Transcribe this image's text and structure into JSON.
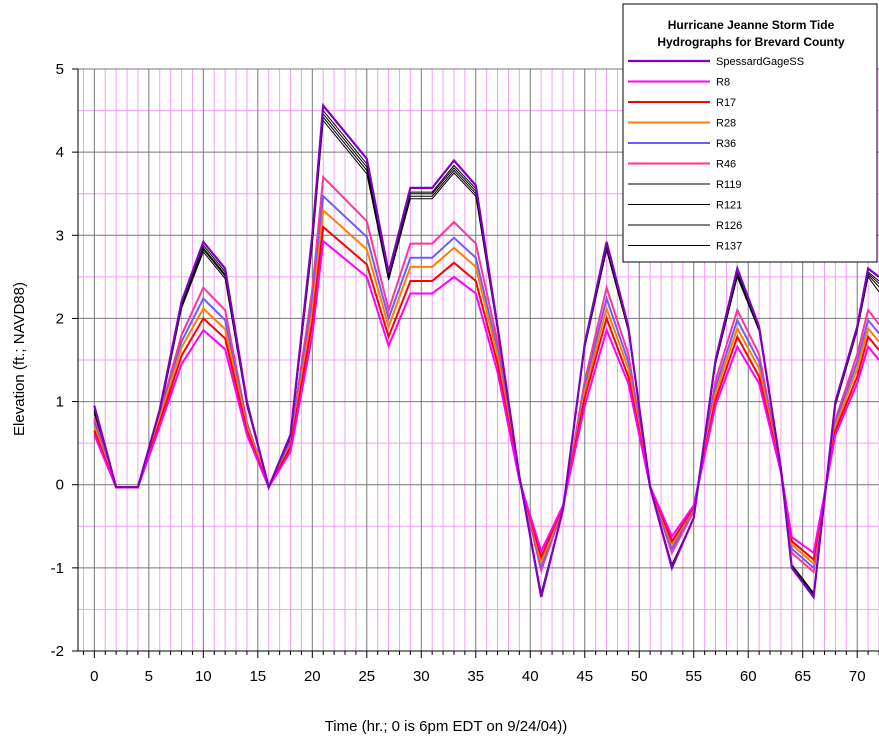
{
  "chart_data": {
    "type": "line",
    "title": "Hurricane Jeanne Storm Tide Hydrographs for Brevard County",
    "title_lines": [
      "Hurricane Jeanne Storm Tide",
      "Hydrographs for Brevard County"
    ],
    "xlabel": "Time (hr.; 0 is 6pm EDT on 9/24/04))",
    "ylabel": "Elevation (ft.; NAVD88)",
    "xlim": [
      -1.5,
      72
    ],
    "ylim": [
      -2,
      5
    ],
    "x_ticks": [
      0,
      5,
      10,
      15,
      20,
      25,
      30,
      35,
      40,
      45,
      50,
      55,
      60,
      65,
      70
    ],
    "y_ticks": [
      -2,
      -1,
      0,
      1,
      2,
      3,
      4,
      5
    ],
    "grid": true,
    "legend_position": "top-right",
    "x": [
      0,
      2,
      4,
      6,
      8,
      10,
      12,
      14,
      16,
      18,
      20,
      21,
      25,
      27,
      29,
      31,
      33,
      35,
      37,
      39,
      41,
      43,
      45,
      47,
      49,
      51,
      53,
      55,
      57,
      59,
      61,
      63,
      64,
      66,
      68,
      70,
      71,
      72
    ],
    "series": [
      {
        "name": "SpessardGageSS",
        "color": "#8000c0",
        "width": 2.2,
        "values": [
          0.95,
          -0.03,
          -0.03,
          0.9,
          2.2,
          2.92,
          2.6,
          1.0,
          -0.03,
          0.6,
          3.0,
          4.56,
          3.92,
          2.55,
          3.57,
          3.57,
          3.9,
          3.6,
          1.9,
          0.1,
          -1.35,
          -0.3,
          1.7,
          2.92,
          1.9,
          -0.03,
          -1.0,
          -0.4,
          1.5,
          2.6,
          1.9,
          0.2,
          -1.0,
          -1.35,
          1.0,
          1.9,
          2.6,
          2.5
        ]
      },
      {
        "name": "R8",
        "color": "#ff00ff",
        "width": 2,
        "values": [
          0.6,
          -0.03,
          -0.03,
          0.7,
          1.45,
          1.86,
          1.63,
          0.6,
          -0.03,
          0.4,
          1.8,
          2.93,
          2.5,
          1.67,
          2.3,
          2.3,
          2.5,
          2.3,
          1.35,
          0.05,
          -0.8,
          -0.25,
          0.95,
          1.86,
          1.22,
          -0.02,
          -0.62,
          -0.25,
          0.95,
          1.66,
          1.22,
          0.15,
          -0.63,
          -0.82,
          0.6,
          1.22,
          1.66,
          1.5
        ]
      },
      {
        "name": "R17",
        "color": "#ff0000",
        "width": 2,
        "values": [
          0.65,
          -0.03,
          -0.03,
          0.75,
          1.55,
          2.0,
          1.76,
          0.65,
          -0.03,
          0.45,
          1.95,
          3.1,
          2.65,
          1.78,
          2.45,
          2.45,
          2.67,
          2.45,
          1.45,
          0.06,
          -0.87,
          -0.26,
          1.05,
          2.0,
          1.3,
          -0.02,
          -0.68,
          -0.27,
          1.02,
          1.78,
          1.3,
          0.16,
          -0.68,
          -0.9,
          0.65,
          1.3,
          1.78,
          1.62
        ]
      },
      {
        "name": "R28",
        "color": "#ff7f00",
        "width": 2,
        "values": [
          0.7,
          -0.03,
          -0.03,
          0.8,
          1.65,
          2.12,
          1.87,
          0.7,
          -0.03,
          0.47,
          2.08,
          3.3,
          2.83,
          1.9,
          2.62,
          2.62,
          2.85,
          2.62,
          1.55,
          0.07,
          -0.93,
          -0.27,
          1.12,
          2.12,
          1.4,
          -0.02,
          -0.72,
          -0.28,
          1.1,
          1.88,
          1.4,
          0.17,
          -0.72,
          -0.95,
          0.7,
          1.4,
          1.88,
          1.72
        ]
      },
      {
        "name": "R36",
        "color": "#6a5cff",
        "width": 2,
        "values": [
          0.75,
          -0.03,
          -0.03,
          0.82,
          1.72,
          2.24,
          1.98,
          0.72,
          -0.03,
          0.5,
          2.2,
          3.47,
          2.98,
          2.0,
          2.73,
          2.73,
          2.97,
          2.73,
          1.62,
          0.08,
          -0.98,
          -0.28,
          1.18,
          2.24,
          1.48,
          -0.02,
          -0.77,
          -0.3,
          1.17,
          1.98,
          1.48,
          0.18,
          -0.77,
          -1.0,
          0.74,
          1.48,
          1.98,
          1.82
        ]
      },
      {
        "name": "R46",
        "color": "#ff3399",
        "width": 2,
        "values": [
          0.8,
          -0.03,
          -0.03,
          0.85,
          1.8,
          2.37,
          2.1,
          0.75,
          -0.03,
          0.52,
          2.35,
          3.7,
          3.17,
          2.1,
          2.9,
          2.9,
          3.16,
          2.9,
          1.72,
          0.08,
          -1.03,
          -0.29,
          1.25,
          2.37,
          1.57,
          -0.02,
          -0.82,
          -0.32,
          1.25,
          2.1,
          1.57,
          0.19,
          -0.82,
          -1.05,
          0.78,
          1.57,
          2.1,
          1.93
        ]
      },
      {
        "name": "R119",
        "color": "#000000",
        "width": 1,
        "values": [
          0.92,
          -0.03,
          -0.03,
          0.88,
          2.18,
          2.88,
          2.56,
          0.98,
          -0.03,
          0.58,
          2.95,
          4.5,
          3.86,
          2.52,
          3.52,
          3.52,
          3.84,
          3.56,
          1.88,
          0.1,
          -1.33,
          -0.3,
          1.68,
          2.88,
          1.88,
          -0.03,
          -0.99,
          -0.4,
          1.48,
          2.56,
          1.88,
          0.2,
          -0.99,
          -1.33,
          0.98,
          1.88,
          2.56,
          2.45
        ]
      },
      {
        "name": "R121",
        "color": "#000000",
        "width": 1,
        "values": [
          0.9,
          -0.03,
          -0.03,
          0.87,
          2.16,
          2.85,
          2.53,
          0.97,
          -0.03,
          0.57,
          2.92,
          4.46,
          3.82,
          2.5,
          3.5,
          3.5,
          3.81,
          3.53,
          1.87,
          0.1,
          -1.32,
          -0.3,
          1.67,
          2.86,
          1.87,
          -0.03,
          -0.98,
          -0.4,
          1.47,
          2.54,
          1.87,
          0.2,
          -0.98,
          -1.32,
          0.97,
          1.87,
          2.54,
          2.42
        ]
      },
      {
        "name": "R126",
        "color": "#000000",
        "width": 1,
        "values": [
          0.88,
          -0.03,
          -0.03,
          0.86,
          2.14,
          2.83,
          2.51,
          0.96,
          -0.03,
          0.56,
          2.9,
          4.42,
          3.78,
          2.48,
          3.47,
          3.47,
          3.78,
          3.5,
          1.86,
          0.1,
          -1.31,
          -0.3,
          1.66,
          2.84,
          1.86,
          -0.03,
          -0.97,
          -0.4,
          1.46,
          2.52,
          1.86,
          0.2,
          -0.97,
          -1.31,
          0.96,
          1.86,
          2.52,
          2.38
        ]
      },
      {
        "name": "R137",
        "color": "#000000",
        "width": 1,
        "values": [
          0.86,
          -0.03,
          -0.03,
          0.85,
          2.12,
          2.8,
          2.48,
          0.95,
          -0.03,
          0.55,
          2.88,
          4.38,
          3.74,
          2.46,
          3.44,
          3.44,
          3.75,
          3.47,
          1.85,
          0.1,
          -1.3,
          -0.3,
          1.65,
          2.82,
          1.85,
          -0.03,
          -0.96,
          -0.4,
          1.45,
          2.5,
          1.85,
          0.2,
          -0.96,
          -1.3,
          0.95,
          1.85,
          2.5,
          2.32
        ]
      }
    ]
  }
}
